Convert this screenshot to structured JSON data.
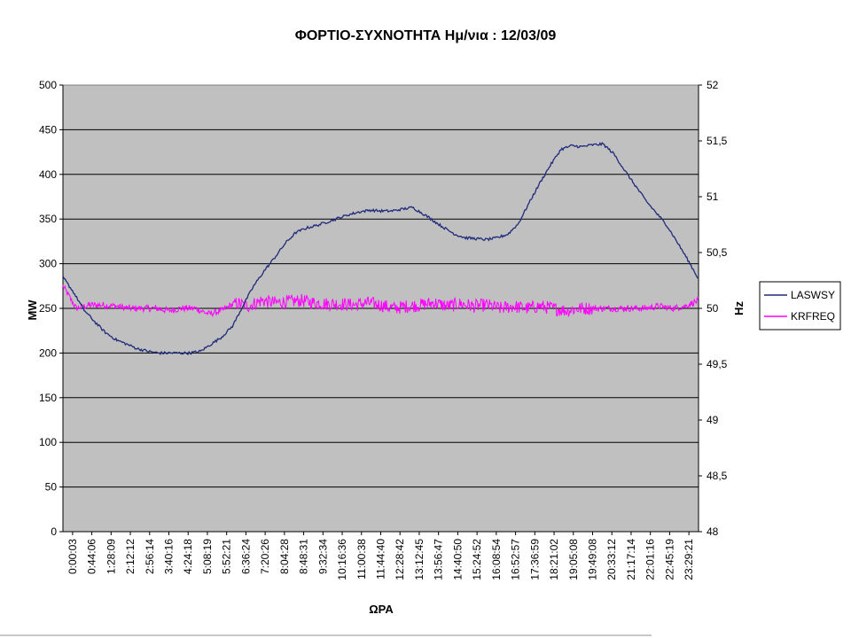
{
  "chart_data": {
    "type": "line",
    "title": "ΦΟΡΤΙΟ-ΣΥΧΝΟΤΗΤΑ Ημ/νια : 12/03/09",
    "xlabel": "ΩΡΑ",
    "ylabel_left": "MW",
    "ylabel_right": "Hz",
    "ylim_left": [
      0,
      500
    ],
    "ylim_right": [
      48,
      52
    ],
    "yticks_left": [
      "0",
      "50",
      "100",
      "150",
      "200",
      "250",
      "300",
      "350",
      "400",
      "450",
      "500"
    ],
    "yticks_right": [
      "48",
      "48,5",
      "49",
      "49,5",
      "50",
      "50,5",
      "51",
      "51,5",
      "52"
    ],
    "x_tick_labels": [
      "0:00:03",
      "0:44:06",
      "1:28:09",
      "2:12:12",
      "2:56:14",
      "3:40:16",
      "4:24:18",
      "5:08:19",
      "5:52:21",
      "6:36:24",
      "7:20:26",
      "8:04:28",
      "8:48:31",
      "9:32:34",
      "10:16:36",
      "11:00:38",
      "11:44:40",
      "12:28:42",
      "13:12:45",
      "13:56:47",
      "14:40:50",
      "15:24:52",
      "16:08:54",
      "16:52:57",
      "17:36:59",
      "18:21:02",
      "19:05:08",
      "19:49:08",
      "20:33:12",
      "21:17:14",
      "22:01:16",
      "22:45:19",
      "23:29:21"
    ],
    "grid": true,
    "legend_position": "right",
    "plot_background": "#c0c0c0",
    "series": [
      {
        "name": "LASWSY",
        "axis": "left",
        "color": "#1f2a7a",
        "x_hours": [
          0,
          0.4,
          0.8,
          1.2,
          1.6,
          2.0,
          2.4,
          2.8,
          3.2,
          3.6,
          4.0,
          4.4,
          4.8,
          5.2,
          5.6,
          6.0,
          6.4,
          6.8,
          7.2,
          7.6,
          8.0,
          8.4,
          8.8,
          9.2,
          9.6,
          10.0,
          10.4,
          10.8,
          11.2,
          11.6,
          12.0,
          12.4,
          12.8,
          13.2,
          13.6,
          14.0,
          14.4,
          14.8,
          15.2,
          15.6,
          16.0,
          16.4,
          16.8,
          17.2,
          17.6,
          18.0,
          18.4,
          18.8,
          19.2,
          19.6,
          20.0,
          20.4,
          20.8,
          21.2,
          21.6,
          22.0,
          22.4,
          22.8,
          23.2,
          23.6,
          24.0
        ],
        "values": [
          285,
          268,
          248,
          235,
          223,
          215,
          210,
          205,
          202,
          200,
          200,
          200,
          200,
          202,
          210,
          218,
          230,
          253,
          275,
          292,
          307,
          323,
          335,
          340,
          343,
          347,
          351,
          355,
          358,
          360,
          359,
          359,
          361,
          363,
          356,
          348,
          340,
          333,
          329,
          328,
          327,
          329,
          333,
          345,
          368,
          390,
          410,
          428,
          432,
          431,
          433,
          434,
          423,
          405,
          388,
          371,
          357,
          343,
          324,
          304,
          283
        ]
      },
      {
        "name": "KRFREQ",
        "axis": "right",
        "color": "#ff00ff",
        "x_hours": [
          0,
          0.25,
          0.5,
          1,
          1.5,
          2,
          2.5,
          3,
          3.5,
          4,
          4.5,
          5,
          5.5,
          6,
          6.5,
          7,
          7.5,
          8,
          8.5,
          9,
          9.5,
          10,
          10.5,
          11,
          11.5,
          12,
          12.5,
          13,
          13.5,
          14,
          14.5,
          15,
          15.5,
          16,
          16.5,
          17,
          17.5,
          18,
          18.5,
          19,
          19.5,
          20,
          20.5,
          21,
          21.5,
          22,
          22.5,
          23,
          23.5,
          24
        ],
        "values": [
          50.2,
          50.1,
          50.0,
          50.03,
          50.03,
          50.02,
          50.0,
          50.0,
          50.0,
          49.98,
          50.0,
          50.0,
          49.95,
          49.98,
          50.05,
          50.02,
          50.07,
          50.05,
          50.06,
          50.07,
          50.05,
          50.04,
          50.04,
          50.03,
          50.05,
          50.03,
          50.0,
          50.02,
          50.03,
          50.05,
          50.02,
          50.04,
          50.02,
          50.03,
          50.0,
          50.02,
          50.0,
          50.02,
          50.0,
          49.98,
          50.0,
          50.0,
          50.0,
          50.0,
          50.0,
          50.0,
          50.02,
          50.0,
          50.02,
          50.07
        ],
        "noise_amplitude_hz": 0.06
      }
    ]
  }
}
